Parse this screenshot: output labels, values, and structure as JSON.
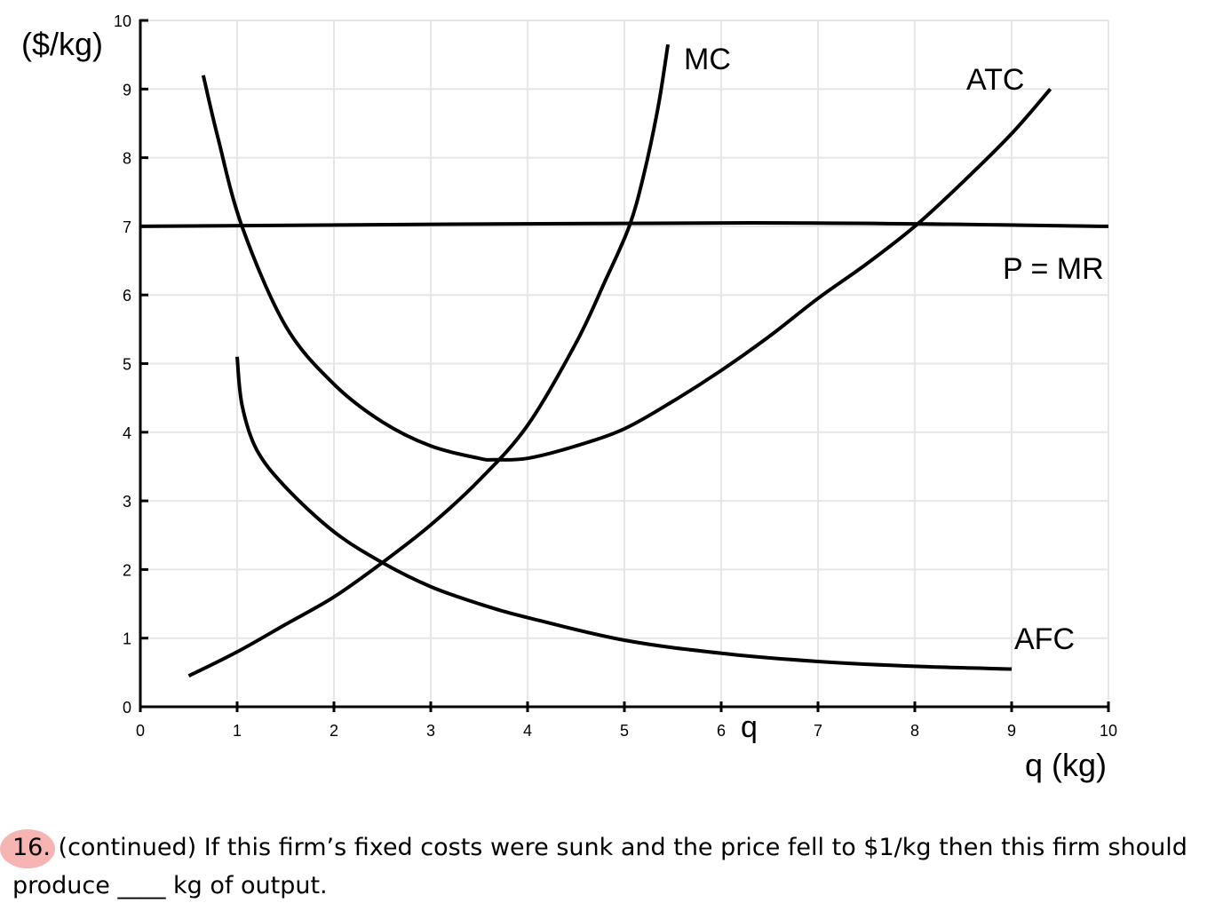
{
  "chart_data": {
    "type": "line",
    "title": "",
    "xlabel": "q (kg)",
    "ylabel": "($/kg)",
    "xlim": [
      0,
      10
    ],
    "ylim": [
      0,
      10
    ],
    "grid": true,
    "x_ticks": [
      "0",
      "1",
      "2",
      "3",
      "4",
      "5",
      "6",
      "7",
      "8",
      "9",
      "10"
    ],
    "y_ticks": [
      "0",
      "1",
      "2",
      "3",
      "4",
      "5",
      "6",
      "7",
      "8",
      "9",
      "10"
    ],
    "extra_x_label": "q",
    "series": [
      {
        "name": "MC",
        "points": [
          [
            0.5,
            0.45
          ],
          [
            1.0,
            0.8
          ],
          [
            1.5,
            1.2
          ],
          [
            2.0,
            1.6
          ],
          [
            2.5,
            2.1
          ],
          [
            3.0,
            2.65
          ],
          [
            3.5,
            3.3
          ],
          [
            4.0,
            4.1
          ],
          [
            4.5,
            5.3
          ],
          [
            4.8,
            6.2
          ],
          [
            5.05,
            7.0
          ],
          [
            5.2,
            7.75
          ],
          [
            5.35,
            8.75
          ],
          [
            5.45,
            9.65
          ]
        ]
      },
      {
        "name": "ATC",
        "points": [
          [
            0.65,
            9.2
          ],
          [
            0.8,
            8.3
          ],
          [
            1.05,
            7.0
          ],
          [
            1.5,
            5.55
          ],
          [
            2.0,
            4.7
          ],
          [
            2.5,
            4.15
          ],
          [
            3.0,
            3.8
          ],
          [
            3.5,
            3.62
          ],
          [
            3.65,
            3.6
          ],
          [
            4.0,
            3.62
          ],
          [
            4.5,
            3.8
          ],
          [
            5.0,
            4.05
          ],
          [
            5.5,
            4.45
          ],
          [
            6.0,
            4.9
          ],
          [
            6.5,
            5.4
          ],
          [
            7.0,
            5.95
          ],
          [
            7.5,
            6.45
          ],
          [
            8.0,
            7.0
          ],
          [
            8.5,
            7.65
          ],
          [
            9.0,
            8.35
          ],
          [
            9.4,
            9.0
          ]
        ]
      },
      {
        "name": "AFC",
        "points": [
          [
            1.0,
            5.1
          ],
          [
            1.05,
            4.4
          ],
          [
            1.2,
            3.75
          ],
          [
            1.5,
            3.2
          ],
          [
            2.0,
            2.55
          ],
          [
            2.5,
            2.1
          ],
          [
            3.0,
            1.75
          ],
          [
            3.5,
            1.5
          ],
          [
            4.0,
            1.3
          ],
          [
            5.0,
            0.97
          ],
          [
            6.0,
            0.78
          ],
          [
            7.0,
            0.66
          ],
          [
            8.0,
            0.59
          ],
          [
            9.0,
            0.55
          ]
        ]
      },
      {
        "name": "P = MR",
        "points": [
          [
            0,
            7.0
          ],
          [
            6.3,
            7.05
          ],
          [
            10,
            7.0
          ]
        ]
      }
    ],
    "curve_labels": {
      "MC": "MC",
      "ATC": "ATC",
      "AFC": "AFC",
      "PMR": "P = MR"
    }
  },
  "question": {
    "number": "16.",
    "text_line1": " (continued) If this firm’s fixed costs were sunk and the price fell to $1/kg then this firm should",
    "text_line2": "produce ____ kg of output."
  },
  "colors": {
    "grid": "#e6e6e6",
    "axis": "#000000",
    "curve": "#000000",
    "highlight": "#f4a3a0"
  }
}
